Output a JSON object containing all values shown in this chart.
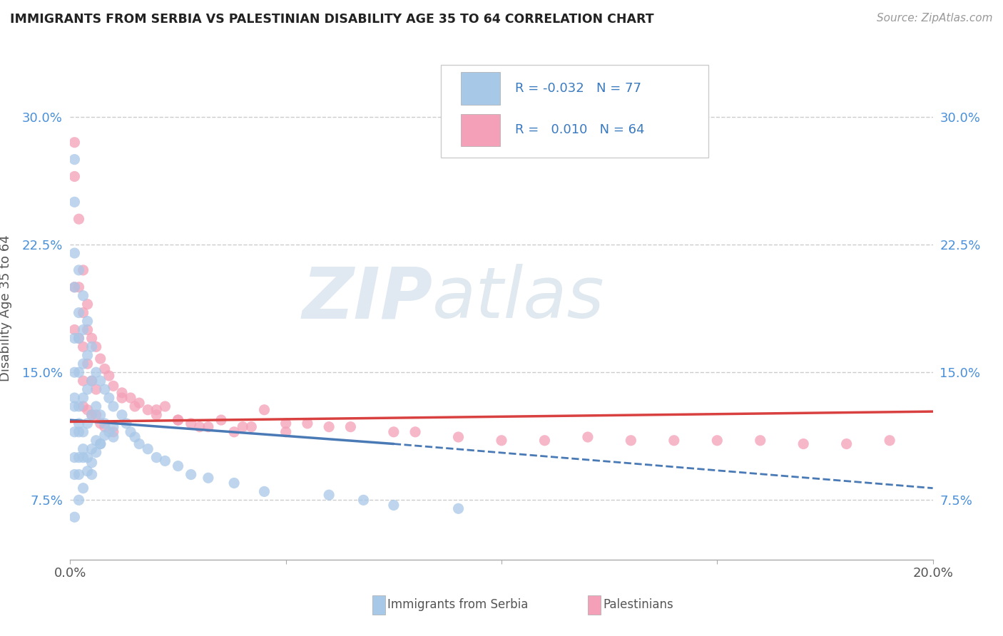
{
  "title": "IMMIGRANTS FROM SERBIA VS PALESTINIAN DISABILITY AGE 35 TO 64 CORRELATION CHART",
  "source_text": "Source: ZipAtlas.com",
  "ylabel": "Disability Age 35 to 64",
  "xlim": [
    0.0,
    0.2
  ],
  "ylim": [
    0.04,
    0.335
  ],
  "xticks": [
    0.0,
    0.05,
    0.1,
    0.15,
    0.2
  ],
  "xticklabels": [
    "0.0%",
    "",
    "",
    "",
    "20.0%"
  ],
  "yticks": [
    0.075,
    0.15,
    0.225,
    0.3
  ],
  "yticklabels": [
    "7.5%",
    "15.0%",
    "22.5%",
    "30.0%"
  ],
  "color_serbia": "#a8c8e8",
  "color_palestinian": "#f4a0b8",
  "color_serbia_line": "#4a7ab5",
  "color_palestinian_line": "#d94040",
  "watermark_zip": "ZIP",
  "watermark_atlas": "atlas",
  "serbia_x": [
    0.001,
    0.001,
    0.001,
    0.001,
    0.001,
    0.001,
    0.001,
    0.001,
    0.001,
    0.001,
    0.002,
    0.002,
    0.002,
    0.002,
    0.002,
    0.002,
    0.002,
    0.002,
    0.003,
    0.003,
    0.003,
    0.003,
    0.003,
    0.003,
    0.004,
    0.004,
    0.004,
    0.004,
    0.004,
    0.005,
    0.005,
    0.005,
    0.005,
    0.006,
    0.006,
    0.006,
    0.007,
    0.007,
    0.007,
    0.008,
    0.008,
    0.009,
    0.009,
    0.01,
    0.01,
    0.012,
    0.013,
    0.014,
    0.015,
    0.016,
    0.018,
    0.02,
    0.022,
    0.025,
    0.028,
    0.032,
    0.038,
    0.045,
    0.06,
    0.068,
    0.075,
    0.09,
    0.005,
    0.003,
    0.002,
    0.001,
    0.001,
    0.002,
    0.003,
    0.004,
    0.005,
    0.006,
    0.007,
    0.008,
    0.01
  ],
  "serbia_y": [
    0.275,
    0.25,
    0.22,
    0.2,
    0.17,
    0.15,
    0.13,
    0.115,
    0.1,
    0.09,
    0.21,
    0.185,
    0.17,
    0.15,
    0.13,
    0.115,
    0.1,
    0.09,
    0.195,
    0.175,
    0.155,
    0.135,
    0.115,
    0.1,
    0.18,
    0.16,
    0.14,
    0.12,
    0.1,
    0.165,
    0.145,
    0.125,
    0.105,
    0.15,
    0.13,
    0.11,
    0.145,
    0.125,
    0.108,
    0.14,
    0.12,
    0.135,
    0.115,
    0.13,
    0.112,
    0.125,
    0.12,
    0.115,
    0.112,
    0.108,
    0.105,
    0.1,
    0.098,
    0.095,
    0.09,
    0.088,
    0.085,
    0.08,
    0.078,
    0.075,
    0.072,
    0.07,
    0.09,
    0.105,
    0.12,
    0.135,
    0.065,
    0.075,
    0.082,
    0.092,
    0.097,
    0.103,
    0.108,
    0.113,
    0.118
  ],
  "pal_x": [
    0.001,
    0.001,
    0.001,
    0.001,
    0.002,
    0.002,
    0.002,
    0.003,
    0.003,
    0.003,
    0.003,
    0.004,
    0.004,
    0.004,
    0.005,
    0.005,
    0.006,
    0.006,
    0.007,
    0.008,
    0.009,
    0.01,
    0.012,
    0.014,
    0.016,
    0.018,
    0.02,
    0.025,
    0.028,
    0.032,
    0.038,
    0.045,
    0.05,
    0.06,
    0.075,
    0.09,
    0.1,
    0.12,
    0.14,
    0.16,
    0.18,
    0.19,
    0.022,
    0.035,
    0.042,
    0.055,
    0.065,
    0.08,
    0.11,
    0.13,
    0.15,
    0.17,
    0.003,
    0.004,
    0.005,
    0.006,
    0.007,
    0.008,
    0.01,
    0.012,
    0.015,
    0.02,
    0.025,
    0.03,
    0.04,
    0.05
  ],
  "pal_y": [
    0.285,
    0.265,
    0.2,
    0.175,
    0.24,
    0.2,
    0.17,
    0.21,
    0.185,
    0.165,
    0.145,
    0.19,
    0.175,
    0.155,
    0.17,
    0.145,
    0.165,
    0.14,
    0.158,
    0.152,
    0.148,
    0.142,
    0.138,
    0.135,
    0.132,
    0.128,
    0.125,
    0.122,
    0.12,
    0.118,
    0.115,
    0.128,
    0.12,
    0.118,
    0.115,
    0.112,
    0.11,
    0.112,
    0.11,
    0.11,
    0.108,
    0.11,
    0.13,
    0.122,
    0.118,
    0.12,
    0.118,
    0.115,
    0.11,
    0.11,
    0.11,
    0.108,
    0.13,
    0.128,
    0.125,
    0.125,
    0.12,
    0.118,
    0.115,
    0.135,
    0.13,
    0.128,
    0.122,
    0.118,
    0.118,
    0.115
  ],
  "serbia_line_x0": 0.0,
  "serbia_line_y0": 0.122,
  "serbia_line_x_solid_end": 0.075,
  "serbia_line_y_solid_end": 0.108,
  "serbia_line_x_dash_end": 0.2,
  "serbia_line_y_dash_end": 0.082,
  "pal_line_x0": 0.0,
  "pal_line_y0": 0.121,
  "pal_line_x_end": 0.2,
  "pal_line_y_end": 0.127
}
